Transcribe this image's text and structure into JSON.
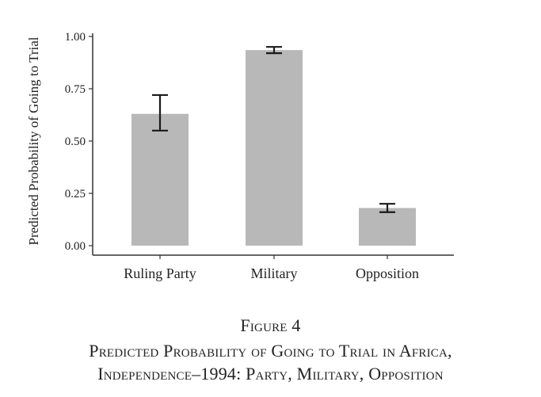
{
  "chart_data": {
    "type": "bar",
    "ylabel": "Predicted Probability of Going to Trial",
    "xlabel": "",
    "ylim": [
      0,
      1.0
    ],
    "yticks": [
      "0.00",
      "0.25",
      "0.50",
      "0.75",
      "1.00"
    ],
    "categories": [
      "Ruling Party",
      "Military",
      "Opposition"
    ],
    "values": [
      0.63,
      0.935,
      0.18
    ],
    "error_low": [
      0.55,
      0.92,
      0.16
    ],
    "error_high": [
      0.72,
      0.95,
      0.2
    ],
    "grid": false,
    "legend": "none"
  },
  "colors": {
    "bar": "#b8b8b8",
    "axis": "#333333",
    "error": "#1a1a1a",
    "text": "#222222"
  },
  "caption": {
    "figure_number": "Figure 4",
    "title_line1": "Predicted Probability of Going to Trial in Africa,",
    "title_line2": "Independence–1994: Party, Military, Opposition"
  }
}
